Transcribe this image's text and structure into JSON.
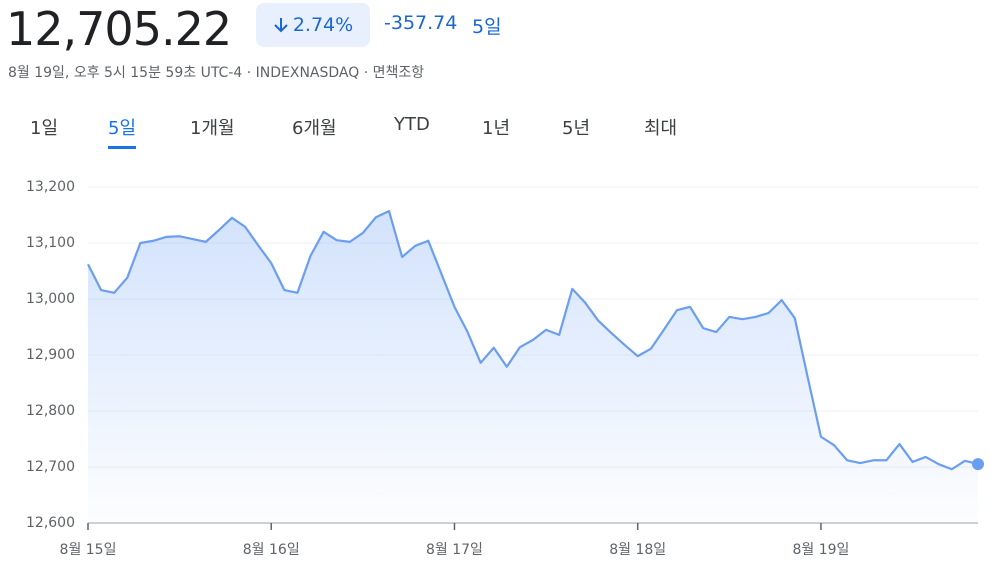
{
  "header": {
    "price": "12,705.22",
    "change_percent": "2.74%",
    "change_points": "-357.74",
    "period": "5일",
    "subtitle": "8월 19일, 오후 5시 15분 59초 UTC-4 · INDEXNASDAQ · 면책조항"
  },
  "tabs": {
    "items": [
      "1일",
      "5일",
      "1개월",
      "6개월",
      "YTD",
      "1년",
      "5년",
      "최대"
    ],
    "active": 1
  },
  "chart_data": {
    "type": "line",
    "color": "#6b9ef0",
    "fill": "#aecbfa",
    "grid": true,
    "categories": [
      "8월 15일",
      null,
      null,
      null,
      null,
      null,
      null,
      null,
      null,
      null,
      null,
      null,
      null,
      null,
      "8월 16일",
      null,
      null,
      null,
      null,
      null,
      null,
      null,
      null,
      null,
      null,
      null,
      null,
      null,
      "8월 17일",
      null,
      null,
      null,
      null,
      null,
      null,
      null,
      null,
      null,
      null,
      null,
      null,
      null,
      "8월 18일",
      null,
      null,
      null,
      null,
      null,
      null,
      null,
      null,
      null,
      null,
      null,
      null,
      null,
      "8월 19일",
      null,
      null,
      null,
      null,
      null,
      null,
      null,
      null,
      null,
      null,
      null,
      null
    ],
    "values": [
      13062,
      13016,
      13011,
      13038,
      13100,
      13104,
      13111,
      13112,
      13107,
      13102,
      13123,
      13145,
      13129,
      13096,
      13064,
      13016,
      13011,
      13077,
      13120,
      13105,
      13102,
      13118,
      13146,
      13157,
      13075,
      13095,
      13104,
      13045,
      12986,
      12941,
      12886,
      12913,
      12879,
      12914,
      12927,
      12945,
      12936,
      13018,
      12993,
      12961,
      12939,
      12918,
      12898,
      12911,
      12945,
      12980,
      12986,
      12948,
      12941,
      12968,
      12964,
      12968,
      12975,
      12998,
      12966,
      12859,
      12754,
      12739,
      12712,
      12707,
      12712,
      12712,
      12741,
      12709,
      12718,
      12705,
      12696,
      12711,
      12705.22
    ],
    "ylim": [
      12600,
      13200
    ],
    "yticks": [
      {
        "value": 12600,
        "label": "12,600"
      },
      {
        "value": 12700,
        "label": "12,700"
      },
      {
        "value": 12800,
        "label": "12,800"
      },
      {
        "value": 12900,
        "label": "12,900"
      },
      {
        "value": 13000,
        "label": "13,000"
      },
      {
        "value": 13100,
        "label": "13,100"
      },
      {
        "value": 13200,
        "label": "13,200"
      }
    ]
  }
}
